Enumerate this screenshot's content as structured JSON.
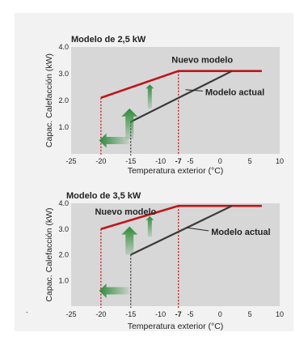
{
  "chart_data": [
    {
      "type": "line",
      "title": "Modelo de 2,5 kW",
      "xlabel": "Temperatura exterior (°C)",
      "ylabel": "Capac. Calefacción (kW)",
      "xlim": [
        -25,
        10
      ],
      "ylim": [
        0,
        4.0
      ],
      "xticks": [
        "-25",
        "-20",
        "-15",
        "-10",
        "-7",
        "-5",
        "0",
        "5",
        "10"
      ],
      "yticks": [
        "1.0",
        "2.0",
        "3.0",
        "4.0"
      ],
      "grid": false,
      "series": [
        {
          "name": "Nuevo modelo",
          "color": "#c0141b",
          "x": [
            -20,
            -7,
            7
          ],
          "y": [
            2.1,
            3.1,
            3.1
          ]
        },
        {
          "name": "Modelo actual",
          "color": "#3a3a3a",
          "x": [
            -15,
            2
          ],
          "y": [
            1.2,
            3.1
          ]
        }
      ],
      "markers": [
        {
          "x": -20,
          "color": "#c0141b"
        },
        {
          "x": -15,
          "color": "#3a3a3a"
        },
        {
          "x": -7,
          "color": "#c0141b",
          "highlight": true
        }
      ],
      "series_label_positions": [
        "above-middle",
        "right"
      ]
    },
    {
      "type": "line",
      "title": "Modelo de 3,5 kW",
      "xlabel": "Temperatura exterior (°C)",
      "ylabel": "Capac. Calefacción (kW)",
      "xlim": [
        -25,
        10
      ],
      "ylim": [
        0,
        4.0
      ],
      "xticks": [
        "-25",
        "-20",
        "-15",
        "-10",
        "-7",
        "-5",
        "0",
        "5",
        "10"
      ],
      "yticks": [
        "1.0",
        "2.0",
        "3.0",
        "4.0"
      ],
      "grid": false,
      "series": [
        {
          "name": "Nuevo modelo",
          "color": "#c0141b",
          "x": [
            -20,
            -7,
            7
          ],
          "y": [
            3.0,
            3.9,
            3.9
          ]
        },
        {
          "name": "Modelo actual",
          "color": "#3a3a3a",
          "x": [
            -15,
            2
          ],
          "y": [
            2.0,
            3.9
          ]
        }
      ],
      "markers": [
        {
          "x": -20,
          "color": "#c0141b"
        },
        {
          "x": -15,
          "color": "#3a3a3a"
        },
        {
          "x": -7,
          "color": "#c0141b",
          "highlight": true
        }
      ],
      "series_label_positions": [
        "left",
        "right"
      ]
    }
  ],
  "stray_mark": "-",
  "colors": {
    "new": "#c0141b",
    "current": "#3a3a3a",
    "arrow": "#2e8b3a",
    "plot_bg": "#d7d7d7",
    "frame_bg": "#f2f2f2"
  }
}
